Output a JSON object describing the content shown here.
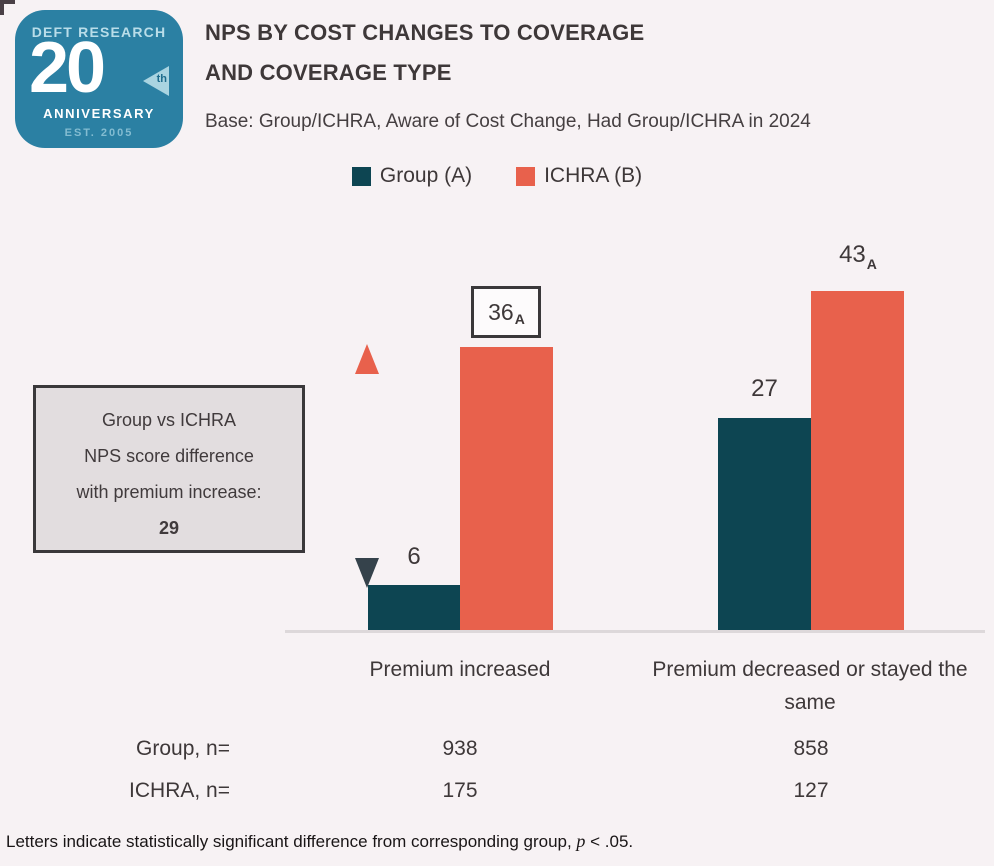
{
  "logo": {
    "brand": "DEFT RESEARCH",
    "big_number": "20",
    "suffix": "th",
    "anniversary": "ANNIVERSARY",
    "established": "EST. 2005",
    "bg_color": "#2b80a3"
  },
  "header": {
    "title_line1": "NPS BY COST CHANGES TO COVERAGE",
    "title_line2": "AND COVERAGE TYPE",
    "subtitle": "Base: Group/ICHRA, Aware of Cost Change, Had Group/ICHRA in 2024"
  },
  "legend": {
    "items": [
      {
        "label": "Group (A)",
        "color": "#0d4552"
      },
      {
        "label": "ICHRA (B)",
        "color": "#e8614c"
      }
    ]
  },
  "annotation_box": {
    "line1": "Group vs ICHRA",
    "line2": "NPS score difference",
    "line3": "with premium increase:",
    "value": "29"
  },
  "chart_data": {
    "type": "bar",
    "title": "NPS by Cost Changes to Coverage and Coverage Type",
    "categories": [
      "Premium increased",
      "Premium decreased or stayed the same"
    ],
    "series": [
      {
        "name": "Group (A)",
        "color": "#0d4552",
        "values": [
          6,
          27
        ]
      },
      {
        "name": "ICHRA (B)",
        "color": "#e8614c",
        "values": [
          36,
          43
        ]
      }
    ],
    "value_labels": [
      [
        {
          "text": "6",
          "sig": "",
          "boxed": false
        },
        {
          "text": "27",
          "sig": "",
          "boxed": false
        }
      ],
      [
        {
          "text": "36",
          "sig": "A",
          "boxed": true
        },
        {
          "text": "43",
          "sig": "A",
          "boxed": false
        }
      ]
    ],
    "ylim": [
      0,
      50
    ],
    "grid": false,
    "legend_position": "top",
    "arrow_annotation": "difference between ICHRA and Group bar tops with premium increase",
    "arrow_colors": {
      "top": "#e8614c",
      "bottom": "#35424b"
    }
  },
  "table": {
    "rows": [
      {
        "label": "Group, n=",
        "values": [
          "938",
          "858"
        ]
      },
      {
        "label": "ICHRA, n=",
        "values": [
          "175",
          "127"
        ]
      }
    ]
  },
  "footnote": {
    "prefix": "Letters indicate statistically significant difference from corresponding group, ",
    "italic": "p",
    "suffix": " < .05."
  }
}
